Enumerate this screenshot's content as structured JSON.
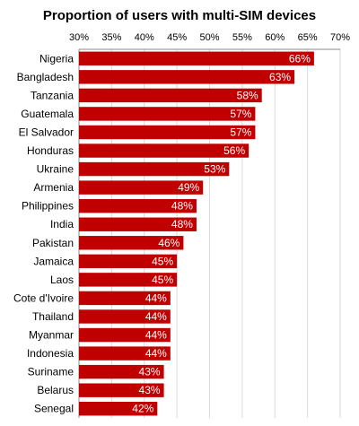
{
  "chart_data": {
    "type": "bar",
    "orientation": "horizontal",
    "title": "Proportion of users with multi-SIM devices",
    "xlabel": "",
    "ylabel": "",
    "xlim": [
      30,
      70
    ],
    "tick_values": [
      30,
      35,
      40,
      45,
      50,
      55,
      60,
      65,
      70
    ],
    "tick_labels": [
      "30%",
      "35%",
      "40%",
      "45%",
      "50%",
      "55%",
      "60%",
      "65%",
      "70%"
    ],
    "axis_position": "top",
    "grid": true,
    "legend": "none",
    "bar_color": "#c00000",
    "categories": [
      "Nigeria",
      "Bangladesh",
      "Tanzania",
      "Guatemala",
      "El Salvador",
      "Honduras",
      "Ukraine",
      "Armenia",
      "Philippines",
      "India",
      "Pakistan",
      "Jamaica",
      "Laos",
      "Cote d'Ivoire",
      "Thailand",
      "Myanmar",
      "Indonesia",
      "Suriname",
      "Belarus",
      "Senegal"
    ],
    "values": [
      66,
      63,
      58,
      57,
      57,
      56,
      53,
      49,
      48,
      48,
      46,
      45,
      45,
      44,
      44,
      44,
      44,
      43,
      43,
      42
    ],
    "data_labels": [
      "66%",
      "63%",
      "58%",
      "57%",
      "57%",
      "56%",
      "53%",
      "49%",
      "48%",
      "48%",
      "46%",
      "45%",
      "45%",
      "44%",
      "44%",
      "44%",
      "44%",
      "43%",
      "43%",
      "42%"
    ]
  }
}
